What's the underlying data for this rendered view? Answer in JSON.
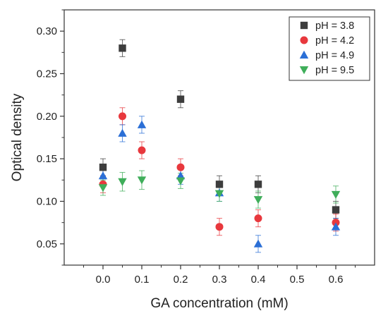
{
  "chart_data": {
    "type": "scatter",
    "xlabel": "GA concentration (mM)",
    "ylabel": "Optical density",
    "xlim": [
      -0.1,
      0.7
    ],
    "ylim": [
      0.025,
      0.325
    ],
    "x_ticks": [
      "0.0",
      "0.1",
      "0.2",
      "0.3",
      "0.4",
      "0.5",
      "0.6"
    ],
    "y_ticks": [
      "0.05",
      "0.10",
      "0.15",
      "0.20",
      "0.25",
      "0.30"
    ],
    "grid": false,
    "legend_position": "top-right",
    "series": [
      {
        "name": "pH = 3.8",
        "marker": "square",
        "color": "#3d3d3d",
        "points": [
          {
            "x": 0.0,
            "y": 0.14,
            "err": 0.01
          },
          {
            "x": 0.05,
            "y": 0.28,
            "err": 0.01
          },
          {
            "x": 0.2,
            "y": 0.22,
            "err": 0.01
          },
          {
            "x": 0.3,
            "y": 0.12,
            "err": 0.01
          },
          {
            "x": 0.4,
            "y": 0.12,
            "err": 0.01
          },
          {
            "x": 0.6,
            "y": 0.09,
            "err": 0.01
          }
        ]
      },
      {
        "name": "pH = 4.2",
        "marker": "circle",
        "color": "#e8383d",
        "points": [
          {
            "x": 0.0,
            "y": 0.12,
            "err": 0.01
          },
          {
            "x": 0.05,
            "y": 0.2,
            "err": 0.01
          },
          {
            "x": 0.1,
            "y": 0.16,
            "err": 0.01
          },
          {
            "x": 0.2,
            "y": 0.14,
            "err": 0.01
          },
          {
            "x": 0.3,
            "y": 0.07,
            "err": 0.01
          },
          {
            "x": 0.4,
            "y": 0.08,
            "err": 0.01
          },
          {
            "x": 0.6,
            "y": 0.075,
            "err": 0.01
          }
        ]
      },
      {
        "name": "pH = 4.9",
        "marker": "triangle-up",
        "color": "#2b6fd6",
        "points": [
          {
            "x": 0.0,
            "y": 0.13,
            "err": 0.01
          },
          {
            "x": 0.05,
            "y": 0.18,
            "err": 0.01
          },
          {
            "x": 0.1,
            "y": 0.19,
            "err": 0.01
          },
          {
            "x": 0.2,
            "y": 0.13,
            "err": 0.01
          },
          {
            "x": 0.3,
            "y": 0.11,
            "err": 0.01
          },
          {
            "x": 0.4,
            "y": 0.05,
            "err": 0.01
          },
          {
            "x": 0.6,
            "y": 0.07,
            "err": 0.01
          }
        ]
      },
      {
        "name": "pH = 9.5",
        "marker": "triangle-down",
        "color": "#3fae5a",
        "points": [
          {
            "x": 0.0,
            "y": 0.116,
            "err": 0.009
          },
          {
            "x": 0.05,
            "y": 0.123,
            "err": 0.011
          },
          {
            "x": 0.1,
            "y": 0.125,
            "err": 0.011
          },
          {
            "x": 0.2,
            "y": 0.124,
            "err": 0.009
          },
          {
            "x": 0.3,
            "y": 0.109,
            "err": 0.009
          },
          {
            "x": 0.4,
            "y": 0.102,
            "err": 0.01
          },
          {
            "x": 0.6,
            "y": 0.108,
            "err": 0.01
          }
        ]
      }
    ]
  }
}
